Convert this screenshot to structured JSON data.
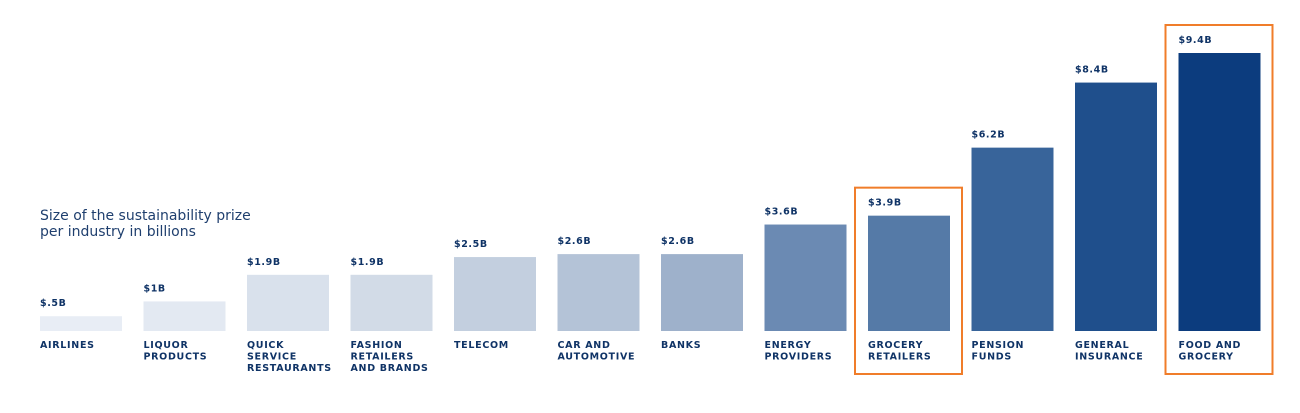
{
  "chart_data": {
    "type": "bar",
    "title_lines": [
      "Size of the sustainability prize",
      "per industry in billions"
    ],
    "categories": [
      [
        "AIRLINES"
      ],
      [
        "LIQUOR",
        "PRODUCTS"
      ],
      [
        "QUICK",
        "SERVICE",
        "RESTAURANTS"
      ],
      [
        "FASHION",
        "RETAILERS",
        "AND BRANDS"
      ],
      [
        "TELECOM"
      ],
      [
        "CAR AND",
        "AUTOMOTIVE"
      ],
      [
        "BANKS"
      ],
      [
        "ENERGY",
        "PROVIDERS"
      ],
      [
        "GROCERY",
        "RETAILERS"
      ],
      [
        "PENSION",
        "FUNDS"
      ],
      [
        "GENERAL",
        "INSURANCE"
      ],
      [
        "FOOD AND",
        "GROCERY"
      ]
    ],
    "values": [
      0.5,
      1,
      1.9,
      1.9,
      2.5,
      2.6,
      2.6,
      3.6,
      3.9,
      6.2,
      8.4,
      9.4
    ],
    "value_labels": [
      "$.5B",
      "$1B",
      "$1.9B",
      "$1.9B",
      "$2.5B",
      "$2.6B",
      "$2.6B",
      "$3.6B",
      "$3.9B",
      "$6.2B",
      "$8.4B",
      "$9.4B"
    ],
    "bar_colors": [
      "#e8edf5",
      "#e3e9f2",
      "#d9e1ec",
      "#d2dbe7",
      "#c3cfdf",
      "#b4c3d7",
      "#9eb1cb",
      "#6b8ab3",
      "#557aa7",
      "#38649a",
      "#1f4f8c",
      "#0c3c7e"
    ],
    "highlighted": [
      "GROCERY RETAILERS",
      "FOOD AND GROCERY"
    ],
    "highlight_color": "#f07d2a",
    "label_color": "#0f3366",
    "ylim": [
      0,
      9.4
    ],
    "grid": false,
    "legend": "none"
  }
}
